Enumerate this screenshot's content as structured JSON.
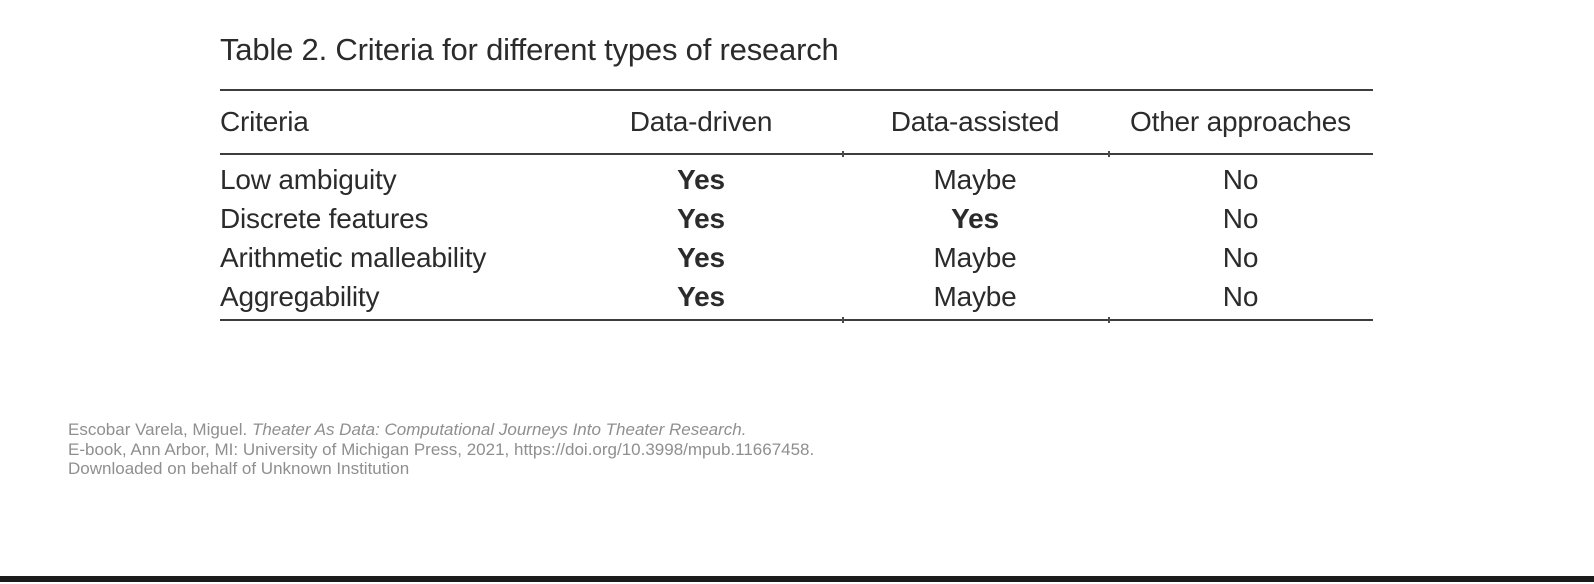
{
  "table": {
    "title": "Table 2. Criteria for different types of research",
    "columns": [
      "Criteria",
      "Data-driven",
      "Data-assisted",
      "Other approaches"
    ],
    "rows": [
      {
        "cells": [
          {
            "text": "Low ambiguity",
            "bold": false
          },
          {
            "text": "Yes",
            "bold": true
          },
          {
            "text": "Maybe",
            "bold": false
          },
          {
            "text": "No",
            "bold": false
          }
        ]
      },
      {
        "cells": [
          {
            "text": "Discrete features",
            "bold": false
          },
          {
            "text": "Yes",
            "bold": true
          },
          {
            "text": "Yes",
            "bold": true
          },
          {
            "text": "No",
            "bold": false
          }
        ]
      },
      {
        "cells": [
          {
            "text": "Arithmetic malleability",
            "bold": false
          },
          {
            "text": "Yes",
            "bold": true
          },
          {
            "text": "Maybe",
            "bold": false
          },
          {
            "text": "No",
            "bold": false
          }
        ]
      },
      {
        "cells": [
          {
            "text": "Aggregability",
            "bold": false
          },
          {
            "text": "Yes",
            "bold": true
          },
          {
            "text": "Maybe",
            "bold": false
          },
          {
            "text": "No",
            "bold": false
          }
        ]
      }
    ]
  },
  "citation": {
    "line1_plain": "Escobar Varela, Miguel. ",
    "line1_italic": "Theater As Data: Computational Journeys Into Theater Research.",
    "line2": "E-book, Ann Arbor, MI: University of Michigan Press, 2021, https://doi.org/10.3998/mpub.11667458.",
    "line3": "Downloaded on behalf of Unknown Institution"
  },
  "colors": {
    "body_text": "#2b2b2b",
    "rule": "#3d3d3d",
    "citation_text": "#8f8f8f",
    "bottom_bar": "#1b1b1b",
    "background": "#ffffff"
  }
}
